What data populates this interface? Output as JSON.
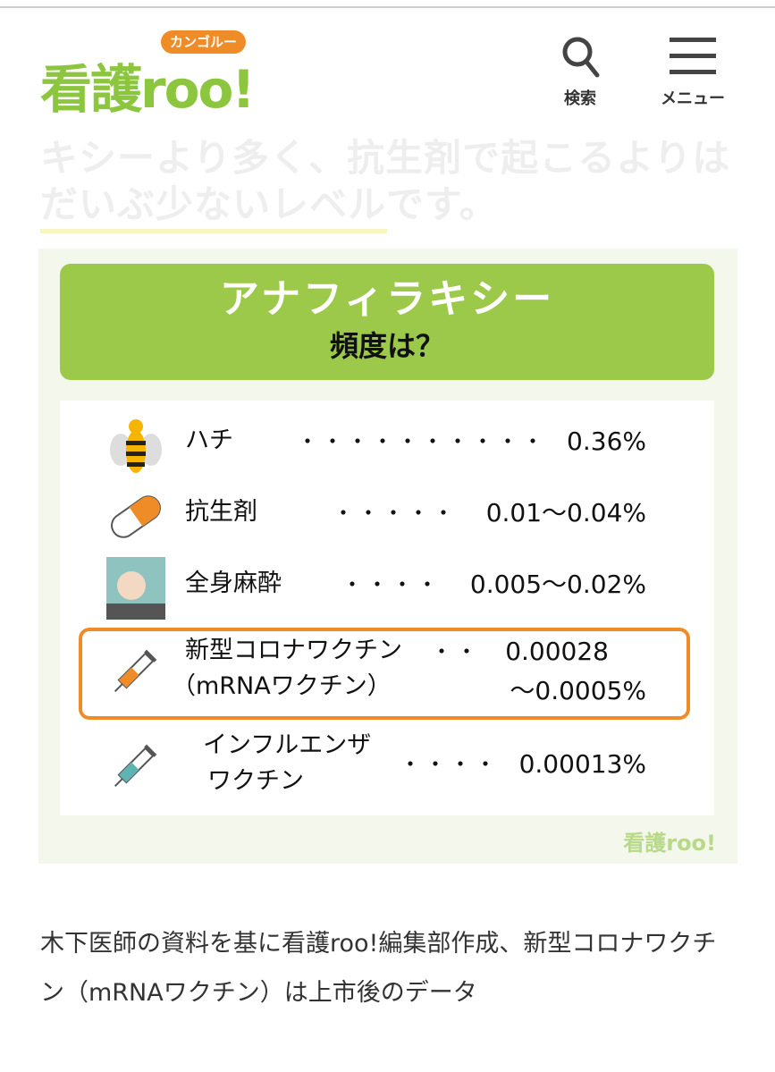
{
  "header": {
    "bg_text": [
      "キシーより多く、抗生剤で起こるよりは",
      "だいぶ少ないレベルです。"
    ],
    "logo": {
      "main": "看護roo!",
      "bubble": "カンゴルー"
    },
    "search_label": "検索",
    "menu_label": "メニュー"
  },
  "infographic": {
    "title": "アナフィラキシー",
    "subtitle": "頻度は？",
    "rows": [
      {
        "icon": "bee-icon",
        "name": "ハチ",
        "dots": "・・・・・・・・・・",
        "value": "0.36%"
      },
      {
        "icon": "capsule-icon",
        "name": "抗生剤",
        "dots": "・・・・・",
        "value": "0.01〜0.04%"
      },
      {
        "icon": "anesthesia-patient-icon",
        "name": "全身麻酔",
        "dots": "・・・・",
        "value": "0.005〜0.02%"
      },
      {
        "icon": "syringe-orange-icon",
        "name": "新型コロナワクチン",
        "name2": "（mRNAワクチン）",
        "dots": "・・",
        "value": "0.00028",
        "value2": "〜0.0005%",
        "highlight": true
      },
      {
        "icon": "syringe-teal-icon",
        "name": "インフルエンザ",
        "name2": "ワクチン",
        "dots": "・・・・",
        "value": "0.00013%"
      }
    ],
    "watermark": "看護roo!",
    "colors": {
      "green": "#9dc94a",
      "orange": "#f08c28",
      "bg": "#f4f8ec"
    }
  },
  "caption": "木下医師の資料を基に看護roo!編集部作成、新型コロナワクチン（mRNAワクチン）は上市後のデータ"
}
